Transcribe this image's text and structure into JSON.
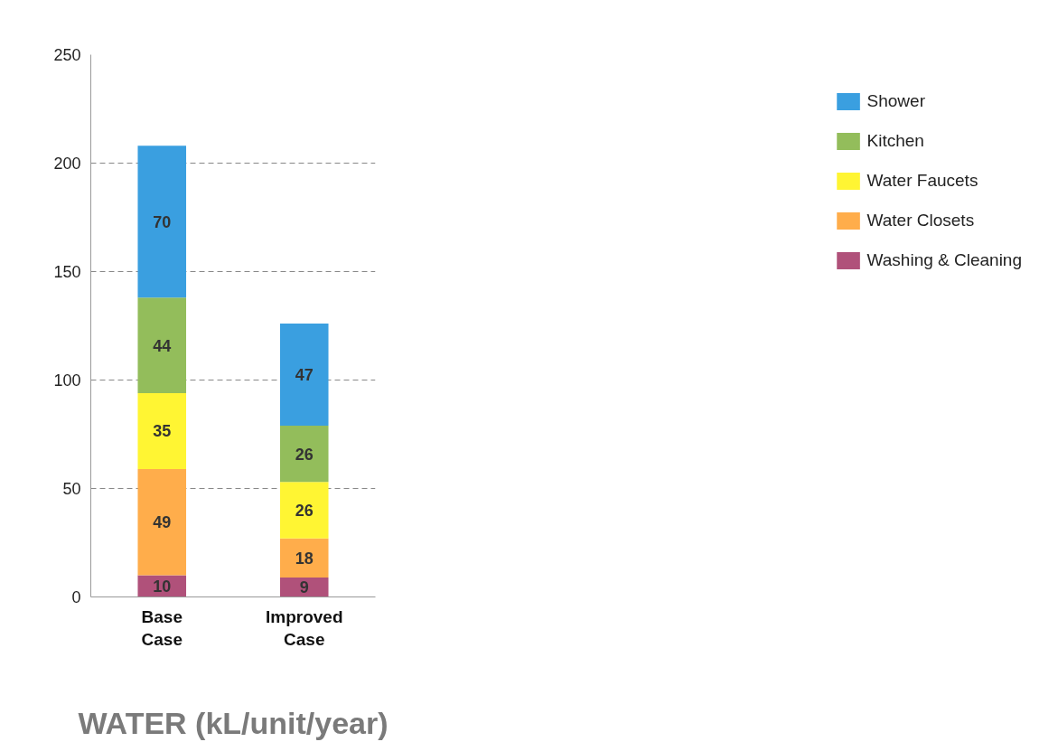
{
  "chart_data": {
    "type": "bar",
    "stacked": true,
    "xlabel": "WATER (kL/unit/year)",
    "categories": [
      "Base Case",
      "Improved Case"
    ],
    "series": [
      {
        "name": "Washing & Cleaning",
        "color": "#b0517a",
        "values": [
          10,
          9
        ]
      },
      {
        "name": "Water Closets",
        "color": "#ffad4b",
        "values": [
          49,
          18
        ]
      },
      {
        "name": "Water Faucets",
        "color": "#fff533",
        "values": [
          35,
          26
        ]
      },
      {
        "name": "Kitchen",
        "color": "#93bd5b",
        "values": [
          44,
          26
        ]
      },
      {
        "name": "Shower",
        "color": "#3a9fe0",
        "values": [
          70,
          47
        ]
      }
    ],
    "ylim": [
      0,
      250
    ],
    "yticks": [
      0,
      50,
      100,
      150,
      200,
      250
    ],
    "grid": "y",
    "legend": "right",
    "data_labels": true
  }
}
